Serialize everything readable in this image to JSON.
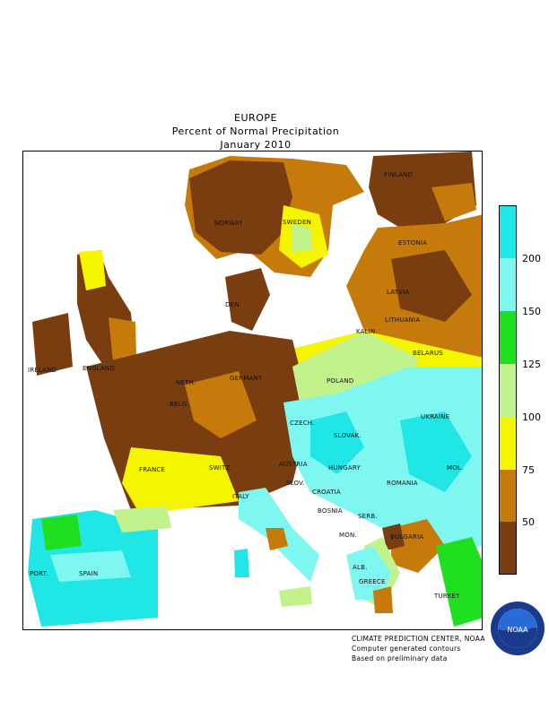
{
  "header": {
    "region": "EUROPE",
    "title": "Percent of Normal Precipitation",
    "period": "January 2010"
  },
  "legend": {
    "colors": [
      "#7a3d10",
      "#c67a0a",
      "#f5f500",
      "#c2f28b",
      "#1fe01f",
      "#7ef7f0",
      "#20e6e6"
    ],
    "labels": [
      "50",
      "75",
      "100",
      "125",
      "150",
      "200"
    ]
  },
  "countries": [
    {
      "key": "finland",
      "name": "FINLAND"
    },
    {
      "key": "norway",
      "name": "NORWAY"
    },
    {
      "key": "sweden",
      "name": "SWEDEN"
    },
    {
      "key": "estonia",
      "name": "ESTONIA"
    },
    {
      "key": "latvia",
      "name": "LATVIA"
    },
    {
      "key": "denmark",
      "name": "DEN."
    },
    {
      "key": "lithuania",
      "name": "LITHUANIA"
    },
    {
      "key": "kalin",
      "name": "KALIN."
    },
    {
      "key": "ireland",
      "name": "IRELAND"
    },
    {
      "key": "england",
      "name": "ENGLAND"
    },
    {
      "key": "neth",
      "name": "NETH."
    },
    {
      "key": "germany",
      "name": "GERMANY"
    },
    {
      "key": "poland",
      "name": "POLAND"
    },
    {
      "key": "belarus",
      "name": "BELARUS"
    },
    {
      "key": "belg",
      "name": "BELG."
    },
    {
      "key": "czech",
      "name": "CZECH."
    },
    {
      "key": "ukraine",
      "name": "UKRAINE"
    },
    {
      "key": "slovak",
      "name": "SLOVAK."
    },
    {
      "key": "france",
      "name": "FRANCE"
    },
    {
      "key": "switz",
      "name": "SWITZ."
    },
    {
      "key": "austria",
      "name": "AUSTRIA"
    },
    {
      "key": "hungary",
      "name": "HUNGARY"
    },
    {
      "key": "mol",
      "name": "MOL."
    },
    {
      "key": "slov",
      "name": "SLOV."
    },
    {
      "key": "croatia",
      "name": "CROATIA"
    },
    {
      "key": "romania",
      "name": "ROMANIA"
    },
    {
      "key": "italy",
      "name": "ITALY"
    },
    {
      "key": "bosnia",
      "name": "BOSNIA"
    },
    {
      "key": "serb",
      "name": "SERB."
    },
    {
      "key": "mon",
      "name": "MON."
    },
    {
      "key": "bulgaria",
      "name": "BULGARIA"
    },
    {
      "key": "port",
      "name": "PORT."
    },
    {
      "key": "spain",
      "name": "SPAIN"
    },
    {
      "key": "alb",
      "name": "ALB."
    },
    {
      "key": "greece",
      "name": "GREECE"
    },
    {
      "key": "turkey",
      "name": "TURKEY"
    }
  ],
  "credits": [
    "CLIMATE PREDICTION CENTER, NOAA",
    "Computer generated contours",
    "Based on preliminary data"
  ],
  "logo": {
    "text": "NOAA"
  }
}
